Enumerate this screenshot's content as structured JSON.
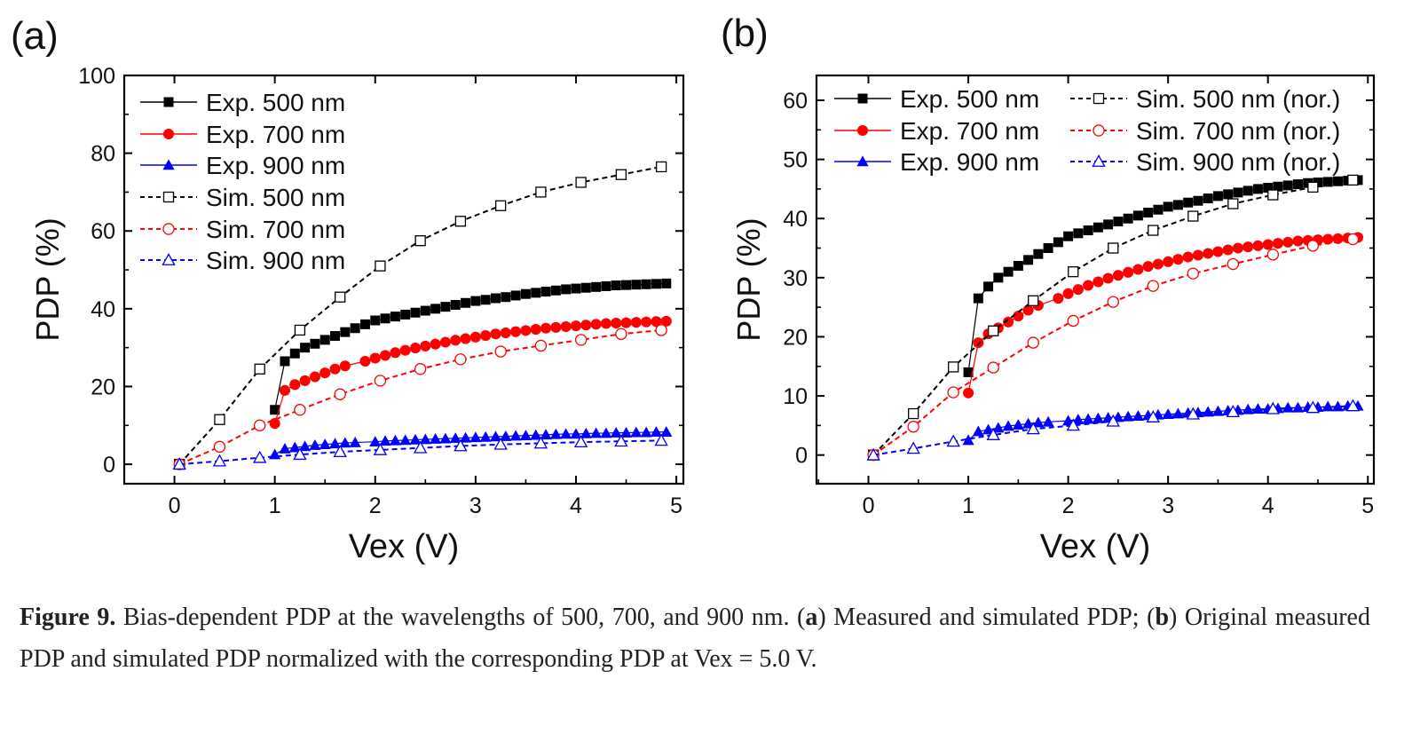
{
  "chart_data": [
    {
      "type": "line",
      "panel_label": "(a)",
      "xlabel": "Vex (V)",
      "ylabel": "PDP (%)",
      "xlim": [
        -0.5,
        5.07
      ],
      "ylim": [
        -5,
        100
      ],
      "xticks": [
        0,
        1,
        2,
        3,
        4,
        5
      ],
      "yticks": [
        0,
        20,
        40,
        60,
        80,
        100
      ],
      "legend_position": "top-left",
      "series": [
        {
          "name": "Exp. 500 nm",
          "color": "#000000",
          "marker": "square-filled",
          "dash": false,
          "x": [
            1.0,
            1.1,
            1.2,
            1.3,
            1.4,
            1.5,
            1.6,
            1.7,
            1.8,
            1.9,
            2.0,
            2.1,
            2.2,
            2.3,
            2.4,
            2.5,
            2.6,
            2.7,
            2.8,
            2.9,
            3.0,
            3.1,
            3.2,
            3.3,
            3.4,
            3.5,
            3.6,
            3.7,
            3.8,
            3.9,
            4.0,
            4.1,
            4.2,
            4.3,
            4.4,
            4.5,
            4.6,
            4.7,
            4.8,
            4.9
          ],
          "y": [
            14,
            26.5,
            28.5,
            30,
            31,
            32,
            33,
            34,
            35,
            36,
            37,
            37.5,
            38,
            38.5,
            39,
            39.5,
            40,
            40.5,
            41,
            41.5,
            42,
            42.3,
            42.7,
            43,
            43.4,
            43.8,
            44.1,
            44.4,
            44.7,
            45,
            45.2,
            45.4,
            45.6,
            45.8,
            46,
            46.1,
            46.2,
            46.3,
            46.4,
            46.5
          ]
        },
        {
          "name": "Exp. 700 nm",
          "color": "#ff0000",
          "marker": "circle-filled",
          "dash": false,
          "x": [
            1.0,
            1.1,
            1.2,
            1.3,
            1.4,
            1.5,
            1.6,
            1.7,
            1.9,
            2.0,
            2.1,
            2.2,
            2.3,
            2.4,
            2.5,
            2.6,
            2.7,
            2.8,
            2.9,
            3.0,
            3.1,
            3.2,
            3.3,
            3.4,
            3.5,
            3.6,
            3.7,
            3.8,
            3.9,
            4.0,
            4.1,
            4.2,
            4.3,
            4.4,
            4.5,
            4.6,
            4.7,
            4.8,
            4.9
          ],
          "y": [
            10.5,
            19,
            20.5,
            21.5,
            22.5,
            23.5,
            24.5,
            25.3,
            26.5,
            27.3,
            28,
            28.7,
            29.3,
            29.9,
            30.4,
            30.9,
            31.4,
            31.9,
            32.3,
            32.7,
            33.1,
            33.5,
            33.8,
            34.1,
            34.4,
            34.7,
            35,
            35.2,
            35.4,
            35.6,
            35.8,
            36,
            36.2,
            36.3,
            36.4,
            36.5,
            36.6,
            36.7,
            36.8
          ]
        },
        {
          "name": "Exp. 900 nm",
          "color": "#0000ff",
          "marker": "triangle-filled",
          "dash": false,
          "x": [
            1.0,
            1.1,
            1.2,
            1.3,
            1.4,
            1.5,
            1.6,
            1.7,
            1.8,
            2.0,
            2.1,
            2.2,
            2.3,
            2.4,
            2.5,
            2.6,
            2.7,
            2.8,
            2.9,
            3.0,
            3.1,
            3.2,
            3.3,
            3.4,
            3.5,
            3.6,
            3.7,
            3.8,
            3.9,
            4.0,
            4.1,
            4.2,
            4.3,
            4.4,
            4.5,
            4.6,
            4.7,
            4.8,
            4.9
          ],
          "y": [
            2.5,
            4,
            4.3,
            4.6,
            4.9,
            5.1,
            5.3,
            5.5,
            5.6,
            5.8,
            6,
            6.1,
            6.2,
            6.3,
            6.4,
            6.5,
            6.6,
            6.7,
            6.8,
            6.9,
            7,
            7.1,
            7.2,
            7.3,
            7.4,
            7.5,
            7.6,
            7.7,
            7.8,
            7.8,
            7.9,
            8,
            8,
            8.1,
            8.1,
            8.2,
            8.2,
            8.3,
            8.3
          ]
        },
        {
          "name": "Sim. 500 nm",
          "color": "#000000",
          "marker": "square-open",
          "dash": true,
          "x": [
            0.05,
            0.45,
            0.85,
            1.25,
            1.65,
            2.05,
            2.45,
            2.85,
            3.25,
            3.65,
            4.05,
            4.45,
            4.85
          ],
          "y": [
            0,
            11.5,
            24.5,
            34.5,
            43,
            51,
            57.5,
            62.5,
            66.5,
            70,
            72.5,
            74.5,
            76.5
          ]
        },
        {
          "name": "Sim. 700 nm",
          "color": "#ff0000",
          "marker": "circle-open",
          "dash": true,
          "x": [
            0.05,
            0.45,
            0.85,
            1.25,
            1.65,
            2.05,
            2.45,
            2.85,
            3.25,
            3.65,
            4.05,
            4.45,
            4.85
          ],
          "y": [
            0,
            4.5,
            10,
            14,
            18,
            21.5,
            24.5,
            27,
            29,
            30.5,
            32,
            33.5,
            34.5
          ]
        },
        {
          "name": "Sim. 900 nm",
          "color": "#0000ff",
          "marker": "triangle-open",
          "dash": true,
          "x": [
            0.05,
            0.45,
            0.85,
            1.25,
            1.65,
            2.05,
            2.45,
            2.85,
            3.25,
            3.65,
            4.05,
            4.45,
            4.85
          ],
          "y": [
            0,
            0.8,
            1.7,
            2.5,
            3.2,
            3.7,
            4.2,
            4.7,
            5.1,
            5.4,
            5.7,
            5.9,
            6.1
          ]
        }
      ]
    },
    {
      "type": "line",
      "panel_label": "(b)",
      "xlabel": "Vex (V)",
      "ylabel": "PDP (%)",
      "xlim": [
        -0.52,
        5.06
      ],
      "ylim": [
        -4.85,
        64.2
      ],
      "xticks": [
        0,
        1,
        2,
        3,
        4,
        5
      ],
      "yticks": [
        0,
        10,
        20,
        30,
        40,
        50,
        60
      ],
      "legend_position": "top (two columns)",
      "series": [
        {
          "name": "Exp. 500 nm",
          "color": "#000000",
          "marker": "square-filled",
          "dash": false,
          "x": [
            1.0,
            1.1,
            1.2,
            1.3,
            1.4,
            1.5,
            1.6,
            1.7,
            1.8,
            1.9,
            2.0,
            2.1,
            2.2,
            2.3,
            2.4,
            2.5,
            2.6,
            2.7,
            2.8,
            2.9,
            3.0,
            3.1,
            3.2,
            3.3,
            3.4,
            3.5,
            3.6,
            3.7,
            3.8,
            3.9,
            4.0,
            4.1,
            4.2,
            4.3,
            4.4,
            4.5,
            4.6,
            4.7,
            4.8,
            4.9
          ],
          "y": [
            14,
            26.5,
            28.5,
            30,
            31,
            32,
            33,
            34,
            35,
            36,
            37,
            37.5,
            38,
            38.5,
            39,
            39.5,
            40,
            40.5,
            41,
            41.5,
            42,
            42.3,
            42.7,
            43,
            43.4,
            43.8,
            44.1,
            44.4,
            44.7,
            45,
            45.2,
            45.4,
            45.6,
            45.8,
            46,
            46.1,
            46.2,
            46.3,
            46.4,
            46.5
          ]
        },
        {
          "name": "Exp. 700 nm",
          "color": "#ff0000",
          "marker": "circle-filled",
          "dash": false,
          "x": [
            1.0,
            1.1,
            1.2,
            1.3,
            1.4,
            1.5,
            1.6,
            1.7,
            1.9,
            2.0,
            2.1,
            2.2,
            2.3,
            2.4,
            2.5,
            2.6,
            2.7,
            2.8,
            2.9,
            3.0,
            3.1,
            3.2,
            3.3,
            3.4,
            3.5,
            3.6,
            3.7,
            3.8,
            3.9,
            4.0,
            4.1,
            4.2,
            4.3,
            4.4,
            4.5,
            4.6,
            4.7,
            4.8,
            4.9
          ],
          "y": [
            10.5,
            19,
            20.5,
            21.5,
            22.5,
            23.5,
            24.5,
            25.3,
            26.5,
            27.3,
            28,
            28.7,
            29.3,
            29.9,
            30.4,
            30.9,
            31.4,
            31.9,
            32.3,
            32.7,
            33.1,
            33.5,
            33.8,
            34.1,
            34.4,
            34.7,
            35,
            35.2,
            35.4,
            35.6,
            35.8,
            36,
            36.2,
            36.3,
            36.4,
            36.5,
            36.6,
            36.7,
            36.8
          ]
        },
        {
          "name": "Exp. 900 nm",
          "color": "#0000ff",
          "marker": "triangle-filled",
          "dash": false,
          "x": [
            1.0,
            1.1,
            1.2,
            1.3,
            1.4,
            1.5,
            1.6,
            1.7,
            1.8,
            2.0,
            2.1,
            2.2,
            2.3,
            2.4,
            2.5,
            2.6,
            2.7,
            2.8,
            2.9,
            3.0,
            3.1,
            3.2,
            3.3,
            3.4,
            3.5,
            3.6,
            3.7,
            3.8,
            3.9,
            4.0,
            4.1,
            4.2,
            4.3,
            4.4,
            4.5,
            4.6,
            4.7,
            4.8,
            4.9
          ],
          "y": [
            2.5,
            4,
            4.3,
            4.6,
            4.9,
            5.1,
            5.3,
            5.5,
            5.6,
            5.8,
            6,
            6.1,
            6.2,
            6.3,
            6.4,
            6.5,
            6.6,
            6.7,
            6.8,
            6.9,
            7,
            7.1,
            7.2,
            7.3,
            7.4,
            7.5,
            7.6,
            7.7,
            7.8,
            7.8,
            7.9,
            8,
            8,
            8.1,
            8.1,
            8.2,
            8.2,
            8.3,
            8.3
          ]
        },
        {
          "name": "Sim. 500 nm (nor.)",
          "color": "#000000",
          "marker": "square-open",
          "dash": true,
          "x": [
            0.05,
            0.45,
            0.85,
            1.25,
            1.65,
            2.05,
            2.45,
            2.85,
            3.25,
            3.65,
            4.05,
            4.45,
            4.85
          ],
          "y": [
            0,
            7,
            14.9,
            21,
            26.1,
            31,
            35,
            38,
            40.4,
            42.5,
            44,
            45.3,
            46.5
          ]
        },
        {
          "name": "Sim. 700 nm (nor.)",
          "color": "#ff0000",
          "marker": "circle-open",
          "dash": true,
          "x": [
            0.05,
            0.45,
            0.85,
            1.25,
            1.65,
            2.05,
            2.45,
            2.85,
            3.25,
            3.65,
            4.05,
            4.45,
            4.85
          ],
          "y": [
            0,
            4.8,
            10.6,
            14.8,
            19,
            22.7,
            25.9,
            28.6,
            30.7,
            32.3,
            33.9,
            35.4,
            36.5
          ]
        },
        {
          "name": "Sim. 900 nm (nor.)",
          "color": "#0000ff",
          "marker": "triangle-open",
          "dash": true,
          "x": [
            0.05,
            0.45,
            0.85,
            1.25,
            1.65,
            2.05,
            2.45,
            2.85,
            3.25,
            3.65,
            4.05,
            4.45,
            4.85
          ],
          "y": [
            0,
            1.1,
            2.3,
            3.4,
            4.4,
            5,
            5.7,
            6.4,
            6.9,
            7.3,
            7.8,
            8,
            8.3
          ]
        }
      ]
    }
  ],
  "caption": {
    "label": "Figure 9.",
    "text1": " Bias-dependent PDP at the wavelengths of 500, 700, and 900 nm. (",
    "a": "a",
    "text2": ") Measured and simulated PDP; (",
    "b": "b",
    "text3": ") Original measured PDP and simulated PDP normalized with the corresponding PDP at Vex = 5.0 V."
  }
}
